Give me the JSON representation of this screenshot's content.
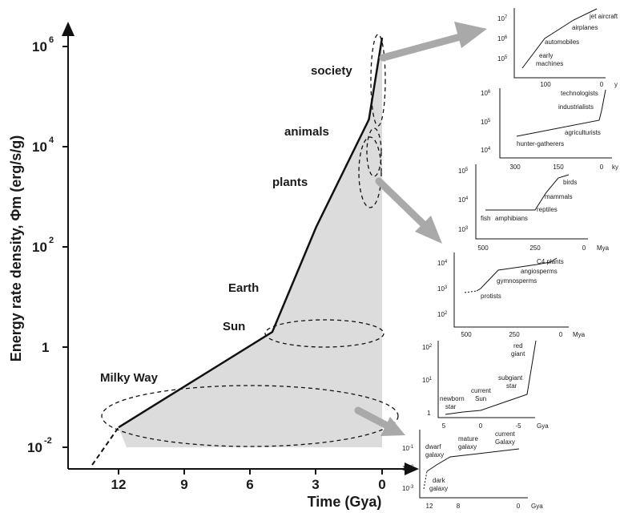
{
  "chart_data": [
    {
      "type": "line",
      "xlabel": "Time (Gya)",
      "ylabel": "Energy rate density, Φm (erg/s/g)",
      "x_ticks": [
        "12",
        "9",
        "6",
        "3",
        "0"
      ],
      "y_ticks": [
        "10^6",
        "10^4",
        "10^2",
        "1",
        "10^-2"
      ],
      "x_reversed": true,
      "y_scale": "log",
      "xlim": [
        13.8,
        0
      ],
      "ylim": [
        0.005,
        3000000
      ],
      "series": [
        {
          "points": [
            {
              "x": 12,
              "y": 0.025
            },
            {
              "x": 5,
              "y": 2
            },
            {
              "x": 3,
              "y": 250
            },
            {
              "x": 0.6,
              "y": 35000
            },
            {
              "x": 0,
              "y": 1500000
            }
          ]
        }
      ],
      "extrapolation": [
        {
          "x": 13.2,
          "y": 0.003
        },
        {
          "x": 12,
          "y": 0.025
        }
      ],
      "annotations": [
        "Milky Way",
        "Sun",
        "Earth",
        "plants",
        "animals",
        "society"
      ],
      "shaded_area": true
    },
    {
      "type": "line",
      "title": "",
      "x_ticks": [
        "100",
        "0"
      ],
      "x_unit": "y",
      "y_ticks": [
        "10^5",
        "10^6",
        "10^7"
      ],
      "annotations": [
        "jet aircraft",
        "airplanes",
        "automobiles",
        "early machines"
      ]
    },
    {
      "type": "line",
      "x_ticks": [
        "300",
        "150",
        "0"
      ],
      "x_unit": "ky",
      "y_ticks": [
        "10^4",
        "10^5",
        "10^6"
      ],
      "annotations": [
        "technologists",
        "industrialists",
        "agriculturists",
        "hunter-gatherers"
      ]
    },
    {
      "type": "line",
      "x_ticks": [
        "500",
        "250",
        "0"
      ],
      "x_unit": "Mya",
      "y_ticks": [
        "10^3",
        "10^4",
        "10^5"
      ],
      "annotations": [
        "birds",
        "mammals",
        "reptiles",
        "fish",
        "amphibians"
      ]
    },
    {
      "type": "line",
      "x_ticks": [
        "500",
        "250",
        "0"
      ],
      "x_unit": "Mya",
      "y_ticks": [
        "10^2",
        "10^3",
        "10^4"
      ],
      "annotations": [
        "C4 plants",
        "angiosperms",
        "gymnosperms",
        "protists"
      ]
    },
    {
      "type": "line",
      "x_ticks": [
        "5",
        "0",
        "-5"
      ],
      "x_unit": "Gya",
      "y_ticks": [
        "1",
        "10^1",
        "10^2"
      ],
      "annotations": [
        "red giant",
        "subgiant star",
        "current Sun",
        "newborn star"
      ]
    },
    {
      "type": "line",
      "x_ticks": [
        "12",
        "8",
        "0"
      ],
      "x_unit": "Gya",
      "y_ticks": [
        "10^-3",
        "10^-2",
        "10^-1"
      ],
      "annotations": [
        "current Galaxy",
        "mature galaxy",
        "dwarf galaxy",
        "dark galaxy"
      ]
    }
  ]
}
